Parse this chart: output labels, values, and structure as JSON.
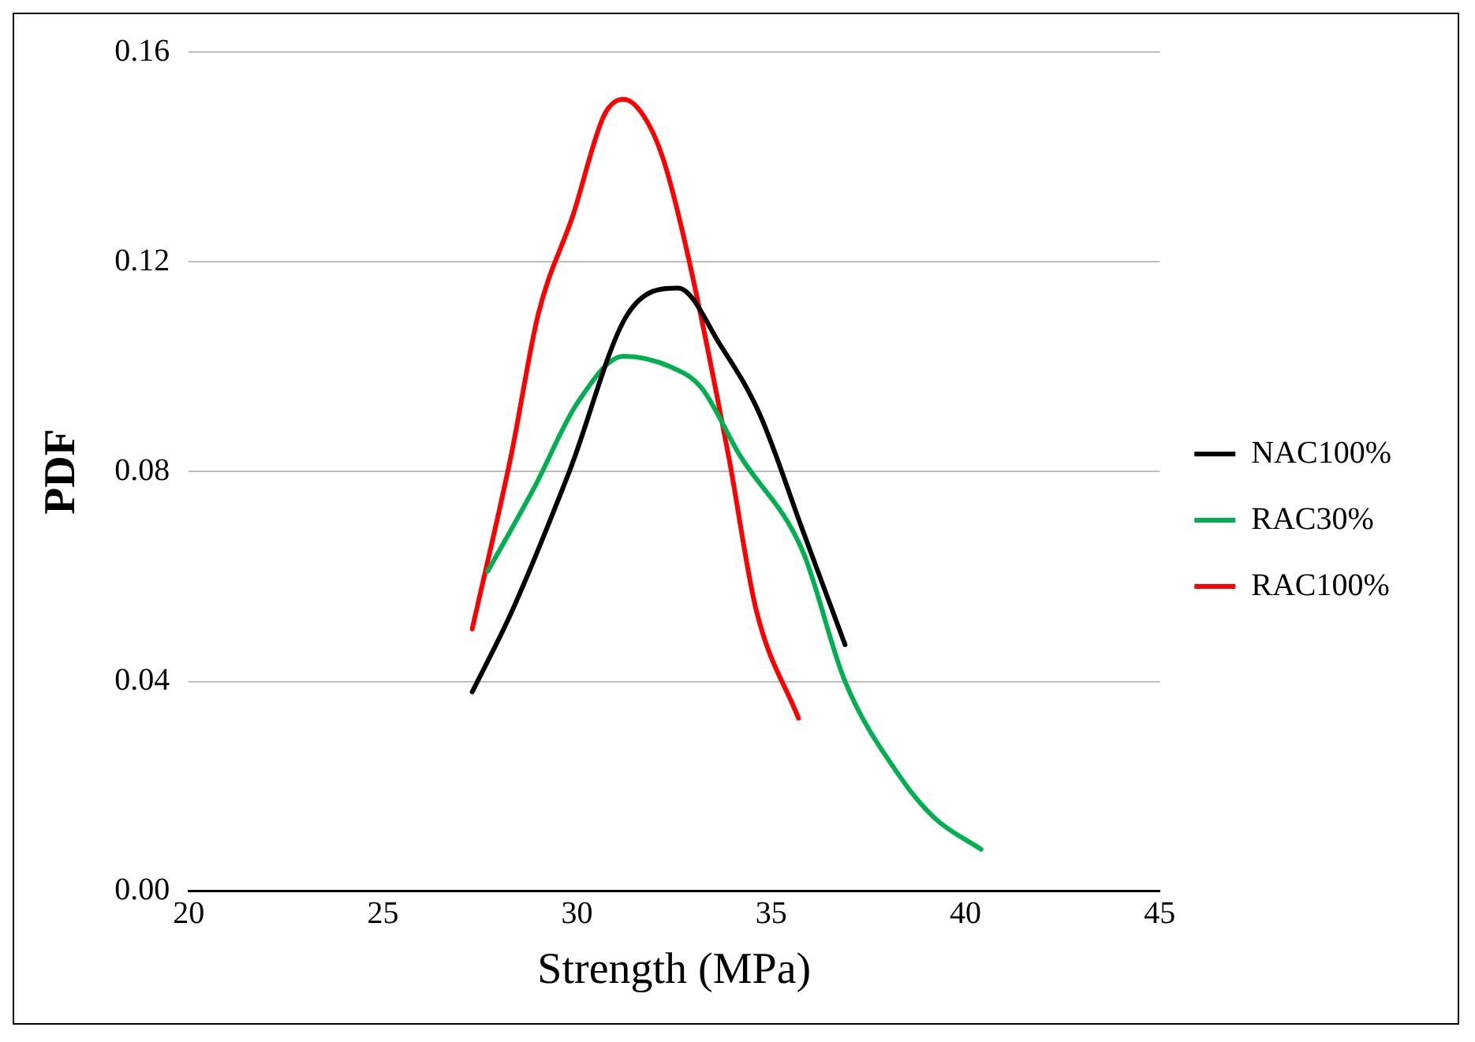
{
  "chart_data": {
    "type": "line",
    "xlabel": "Strength (MPa)",
    "ylabel": "PDF",
    "xlim": [
      20,
      45
    ],
    "xticks": [
      20,
      25,
      30,
      35,
      40,
      45
    ],
    "ylim": [
      0,
      0.16
    ],
    "yticks": [
      {
        "value": 0,
        "label": "0.00"
      },
      {
        "value": 0.04,
        "label": "0.04"
      },
      {
        "value": 0.08,
        "label": "0.08"
      },
      {
        "value": 0.12,
        "label": "0.12"
      },
      {
        "value": 0.16,
        "label": "0.16"
      }
    ],
    "grid": "y",
    "legend": "right",
    "marker": "none",
    "line_style": "solid",
    "series": [
      {
        "name": "NAC100%",
        "color": "#000000",
        "x": [
          27.3,
          28.3,
          29.8,
          31.3,
          32.6,
          33.7,
          34.7,
          35.8,
          36.9
        ],
        "values": [
          0.038,
          0.053,
          0.08,
          0.11,
          0.115,
          0.104,
          0.091,
          0.069,
          0.047
        ]
      },
      {
        "name": "RAC30%",
        "color": "#00b050",
        "x": [
          27.7,
          28.9,
          30.0,
          31.2,
          32.4,
          33.2,
          34.2,
          35.8,
          36.9,
          38.3,
          39.2,
          40.4
        ],
        "values": [
          0.061,
          0.077,
          0.093,
          0.102,
          0.1,
          0.096,
          0.083,
          0.065,
          0.04,
          0.022,
          0.014,
          0.008
        ]
      },
      {
        "name": "RAC100%",
        "color": "#ff0000",
        "x": [
          27.3,
          28.3,
          29.0,
          29.9,
          30.7,
          31.2,
          31.7,
          32.2,
          32.8,
          33.9,
          34.6,
          35.7
        ],
        "values": [
          0.05,
          0.083,
          0.11,
          0.129,
          0.148,
          0.151,
          0.148,
          0.14,
          0.123,
          0.083,
          0.054,
          0.033
        ]
      }
    ]
  }
}
